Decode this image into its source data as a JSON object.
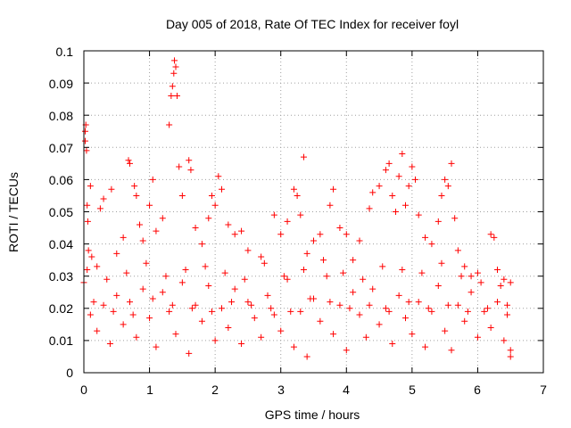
{
  "colors": {
    "series": "#ff0000",
    "axis": "#000000",
    "grid": "#a0a0a0"
  },
  "chart_data": {
    "type": "scatter",
    "title": "Day 005 of 2018, Rate Of TEC Index for receiver foyl",
    "xlabel": "GPS time / hours",
    "ylabel": "ROTI / TECUs",
    "xlim": [
      0,
      7
    ],
    "ylim": [
      0,
      0.1
    ],
    "xticks": [
      "0",
      "1",
      "2",
      "3",
      "4",
      "5",
      "6",
      "7"
    ],
    "yticks": [
      "0",
      "0.01",
      "0.02",
      "0.03",
      "0.04",
      "0.05",
      "0.06",
      "0.07",
      "0.08",
      "0.09",
      "0.1"
    ],
    "grid": true,
    "marker": "plus",
    "series": [
      {
        "name": "ROTI",
        "points": [
          [
            0.0,
            0.028
          ],
          [
            0.02,
            0.075
          ],
          [
            0.02,
            0.072
          ],
          [
            0.03,
            0.077
          ],
          [
            0.04,
            0.069
          ],
          [
            0.05,
            0.052
          ],
          [
            0.06,
            0.047
          ],
          [
            0.07,
            0.038
          ],
          [
            0.1,
            0.058
          ],
          [
            0.12,
            0.036
          ],
          [
            0.2,
            0.033
          ],
          [
            0.25,
            0.051
          ],
          [
            0.3,
            0.054
          ],
          [
            0.42,
            0.057
          ],
          [
            0.5,
            0.037
          ],
          [
            0.6,
            0.042
          ],
          [
            0.68,
            0.066
          ],
          [
            0.7,
            0.065
          ],
          [
            0.77,
            0.058
          ],
          [
            0.8,
            0.055
          ],
          [
            0.85,
            0.046
          ],
          [
            0.9,
            0.041
          ],
          [
            1.0,
            0.052
          ],
          [
            1.05,
            0.06
          ],
          [
            1.1,
            0.044
          ],
          [
            1.2,
            0.048
          ],
          [
            1.3,
            0.077
          ],
          [
            1.33,
            0.086
          ],
          [
            1.35,
            0.089
          ],
          [
            1.37,
            0.093
          ],
          [
            1.38,
            0.097
          ],
          [
            1.4,
            0.095
          ],
          [
            1.42,
            0.086
          ],
          [
            1.45,
            0.064
          ],
          [
            1.5,
            0.055
          ],
          [
            1.6,
            0.066
          ],
          [
            1.63,
            0.063
          ],
          [
            1.7,
            0.045
          ],
          [
            1.8,
            0.04
          ],
          [
            1.9,
            0.048
          ],
          [
            1.95,
            0.055
          ],
          [
            2.0,
            0.052
          ],
          [
            2.05,
            0.061
          ],
          [
            2.1,
            0.057
          ],
          [
            2.2,
            0.046
          ],
          [
            2.3,
            0.043
          ],
          [
            2.4,
            0.044
          ],
          [
            2.5,
            0.038
          ],
          [
            2.7,
            0.036
          ],
          [
            2.9,
            0.049
          ],
          [
            3.0,
            0.043
          ],
          [
            3.1,
            0.047
          ],
          [
            3.2,
            0.057
          ],
          [
            3.25,
            0.055
          ],
          [
            3.3,
            0.049
          ],
          [
            3.35,
            0.067
          ],
          [
            3.4,
            0.037
          ],
          [
            3.5,
            0.041
          ],
          [
            3.6,
            0.043
          ],
          [
            3.75,
            0.052
          ],
          [
            3.8,
            0.057
          ],
          [
            3.9,
            0.045
          ],
          [
            4.0,
            0.043
          ],
          [
            4.1,
            0.035
          ],
          [
            4.2,
            0.041
          ],
          [
            4.35,
            0.051
          ],
          [
            4.4,
            0.056
          ],
          [
            4.5,
            0.058
          ],
          [
            4.6,
            0.063
          ],
          [
            4.65,
            0.065
          ],
          [
            4.7,
            0.055
          ],
          [
            4.75,
            0.05
          ],
          [
            4.8,
            0.061
          ],
          [
            4.85,
            0.068
          ],
          [
            4.9,
            0.052
          ],
          [
            4.95,
            0.058
          ],
          [
            5.0,
            0.064
          ],
          [
            5.05,
            0.06
          ],
          [
            5.1,
            0.049
          ],
          [
            5.2,
            0.042
          ],
          [
            5.3,
            0.04
          ],
          [
            5.4,
            0.047
          ],
          [
            5.45,
            0.055
          ],
          [
            5.5,
            0.06
          ],
          [
            5.55,
            0.058
          ],
          [
            5.6,
            0.065
          ],
          [
            5.65,
            0.048
          ],
          [
            5.7,
            0.038
          ],
          [
            5.8,
            0.033
          ],
          [
            5.9,
            0.03
          ],
          [
            6.0,
            0.031
          ],
          [
            6.2,
            0.043
          ],
          [
            6.25,
            0.042
          ],
          [
            6.3,
            0.032
          ],
          [
            6.4,
            0.029
          ],
          [
            6.5,
            0.028
          ],
          [
            0.1,
            0.018
          ],
          [
            0.2,
            0.013
          ],
          [
            0.3,
            0.021
          ],
          [
            0.4,
            0.009
          ],
          [
            0.5,
            0.024
          ],
          [
            0.6,
            0.015
          ],
          [
            0.7,
            0.022
          ],
          [
            0.8,
            0.011
          ],
          [
            0.9,
            0.026
          ],
          [
            1.0,
            0.017
          ],
          [
            1.1,
            0.008
          ],
          [
            1.2,
            0.025
          ],
          [
            1.3,
            0.019
          ],
          [
            1.4,
            0.012
          ],
          [
            1.5,
            0.028
          ],
          [
            1.6,
            0.006
          ],
          [
            1.7,
            0.021
          ],
          [
            1.8,
            0.016
          ],
          [
            1.9,
            0.027
          ],
          [
            2.0,
            0.01
          ],
          [
            2.1,
            0.02
          ],
          [
            2.2,
            0.014
          ],
          [
            2.3,
            0.026
          ],
          [
            2.4,
            0.009
          ],
          [
            2.5,
            0.022
          ],
          [
            2.6,
            0.017
          ],
          [
            2.7,
            0.011
          ],
          [
            2.8,
            0.024
          ],
          [
            2.9,
            0.018
          ],
          [
            3.0,
            0.013
          ],
          [
            3.1,
            0.029
          ],
          [
            3.2,
            0.008
          ],
          [
            3.3,
            0.019
          ],
          [
            3.4,
            0.005
          ],
          [
            3.5,
            0.023
          ],
          [
            3.6,
            0.016
          ],
          [
            3.7,
            0.03
          ],
          [
            3.8,
            0.012
          ],
          [
            3.9,
            0.021
          ],
          [
            4.0,
            0.007
          ],
          [
            4.1,
            0.025
          ],
          [
            4.2,
            0.018
          ],
          [
            4.3,
            0.011
          ],
          [
            4.4,
            0.026
          ],
          [
            4.5,
            0.015
          ],
          [
            4.6,
            0.02
          ],
          [
            4.7,
            0.009
          ],
          [
            4.8,
            0.024
          ],
          [
            4.9,
            0.017
          ],
          [
            5.0,
            0.012
          ],
          [
            5.1,
            0.022
          ],
          [
            5.2,
            0.008
          ],
          [
            5.3,
            0.019
          ],
          [
            5.4,
            0.027
          ],
          [
            5.5,
            0.013
          ],
          [
            5.6,
            0.007
          ],
          [
            5.7,
            0.021
          ],
          [
            5.8,
            0.016
          ],
          [
            5.9,
            0.025
          ],
          [
            6.0,
            0.011
          ],
          [
            6.1,
            0.019
          ],
          [
            6.2,
            0.014
          ],
          [
            6.3,
            0.022
          ],
          [
            6.4,
            0.01
          ],
          [
            6.5,
            0.005
          ],
          [
            6.5,
            0.007
          ],
          [
            6.45,
            0.018
          ],
          [
            0.05,
            0.032
          ],
          [
            0.35,
            0.029
          ],
          [
            0.65,
            0.031
          ],
          [
            0.95,
            0.034
          ],
          [
            1.25,
            0.03
          ],
          [
            1.55,
            0.032
          ],
          [
            1.85,
            0.033
          ],
          [
            2.15,
            0.031
          ],
          [
            2.45,
            0.029
          ],
          [
            2.75,
            0.034
          ],
          [
            3.05,
            0.03
          ],
          [
            3.35,
            0.032
          ],
          [
            3.65,
            0.035
          ],
          [
            3.95,
            0.031
          ],
          [
            4.25,
            0.029
          ],
          [
            4.55,
            0.033
          ],
          [
            4.85,
            0.032
          ],
          [
            5.15,
            0.031
          ],
          [
            5.45,
            0.034
          ],
          [
            5.75,
            0.03
          ],
          [
            6.05,
            0.028
          ],
          [
            6.35,
            0.027
          ],
          [
            0.15,
            0.022
          ],
          [
            0.45,
            0.019
          ],
          [
            0.75,
            0.018
          ],
          [
            1.05,
            0.023
          ],
          [
            1.35,
            0.021
          ],
          [
            1.65,
            0.02
          ],
          [
            1.95,
            0.019
          ],
          [
            2.25,
            0.022
          ],
          [
            2.55,
            0.021
          ],
          [
            2.85,
            0.02
          ],
          [
            3.15,
            0.019
          ],
          [
            3.45,
            0.023
          ],
          [
            3.75,
            0.022
          ],
          [
            4.05,
            0.02
          ],
          [
            4.35,
            0.021
          ],
          [
            4.65,
            0.019
          ],
          [
            4.95,
            0.022
          ],
          [
            5.25,
            0.02
          ],
          [
            5.55,
            0.021
          ],
          [
            5.85,
            0.019
          ],
          [
            6.15,
            0.02
          ],
          [
            6.45,
            0.021
          ]
        ]
      }
    ]
  }
}
